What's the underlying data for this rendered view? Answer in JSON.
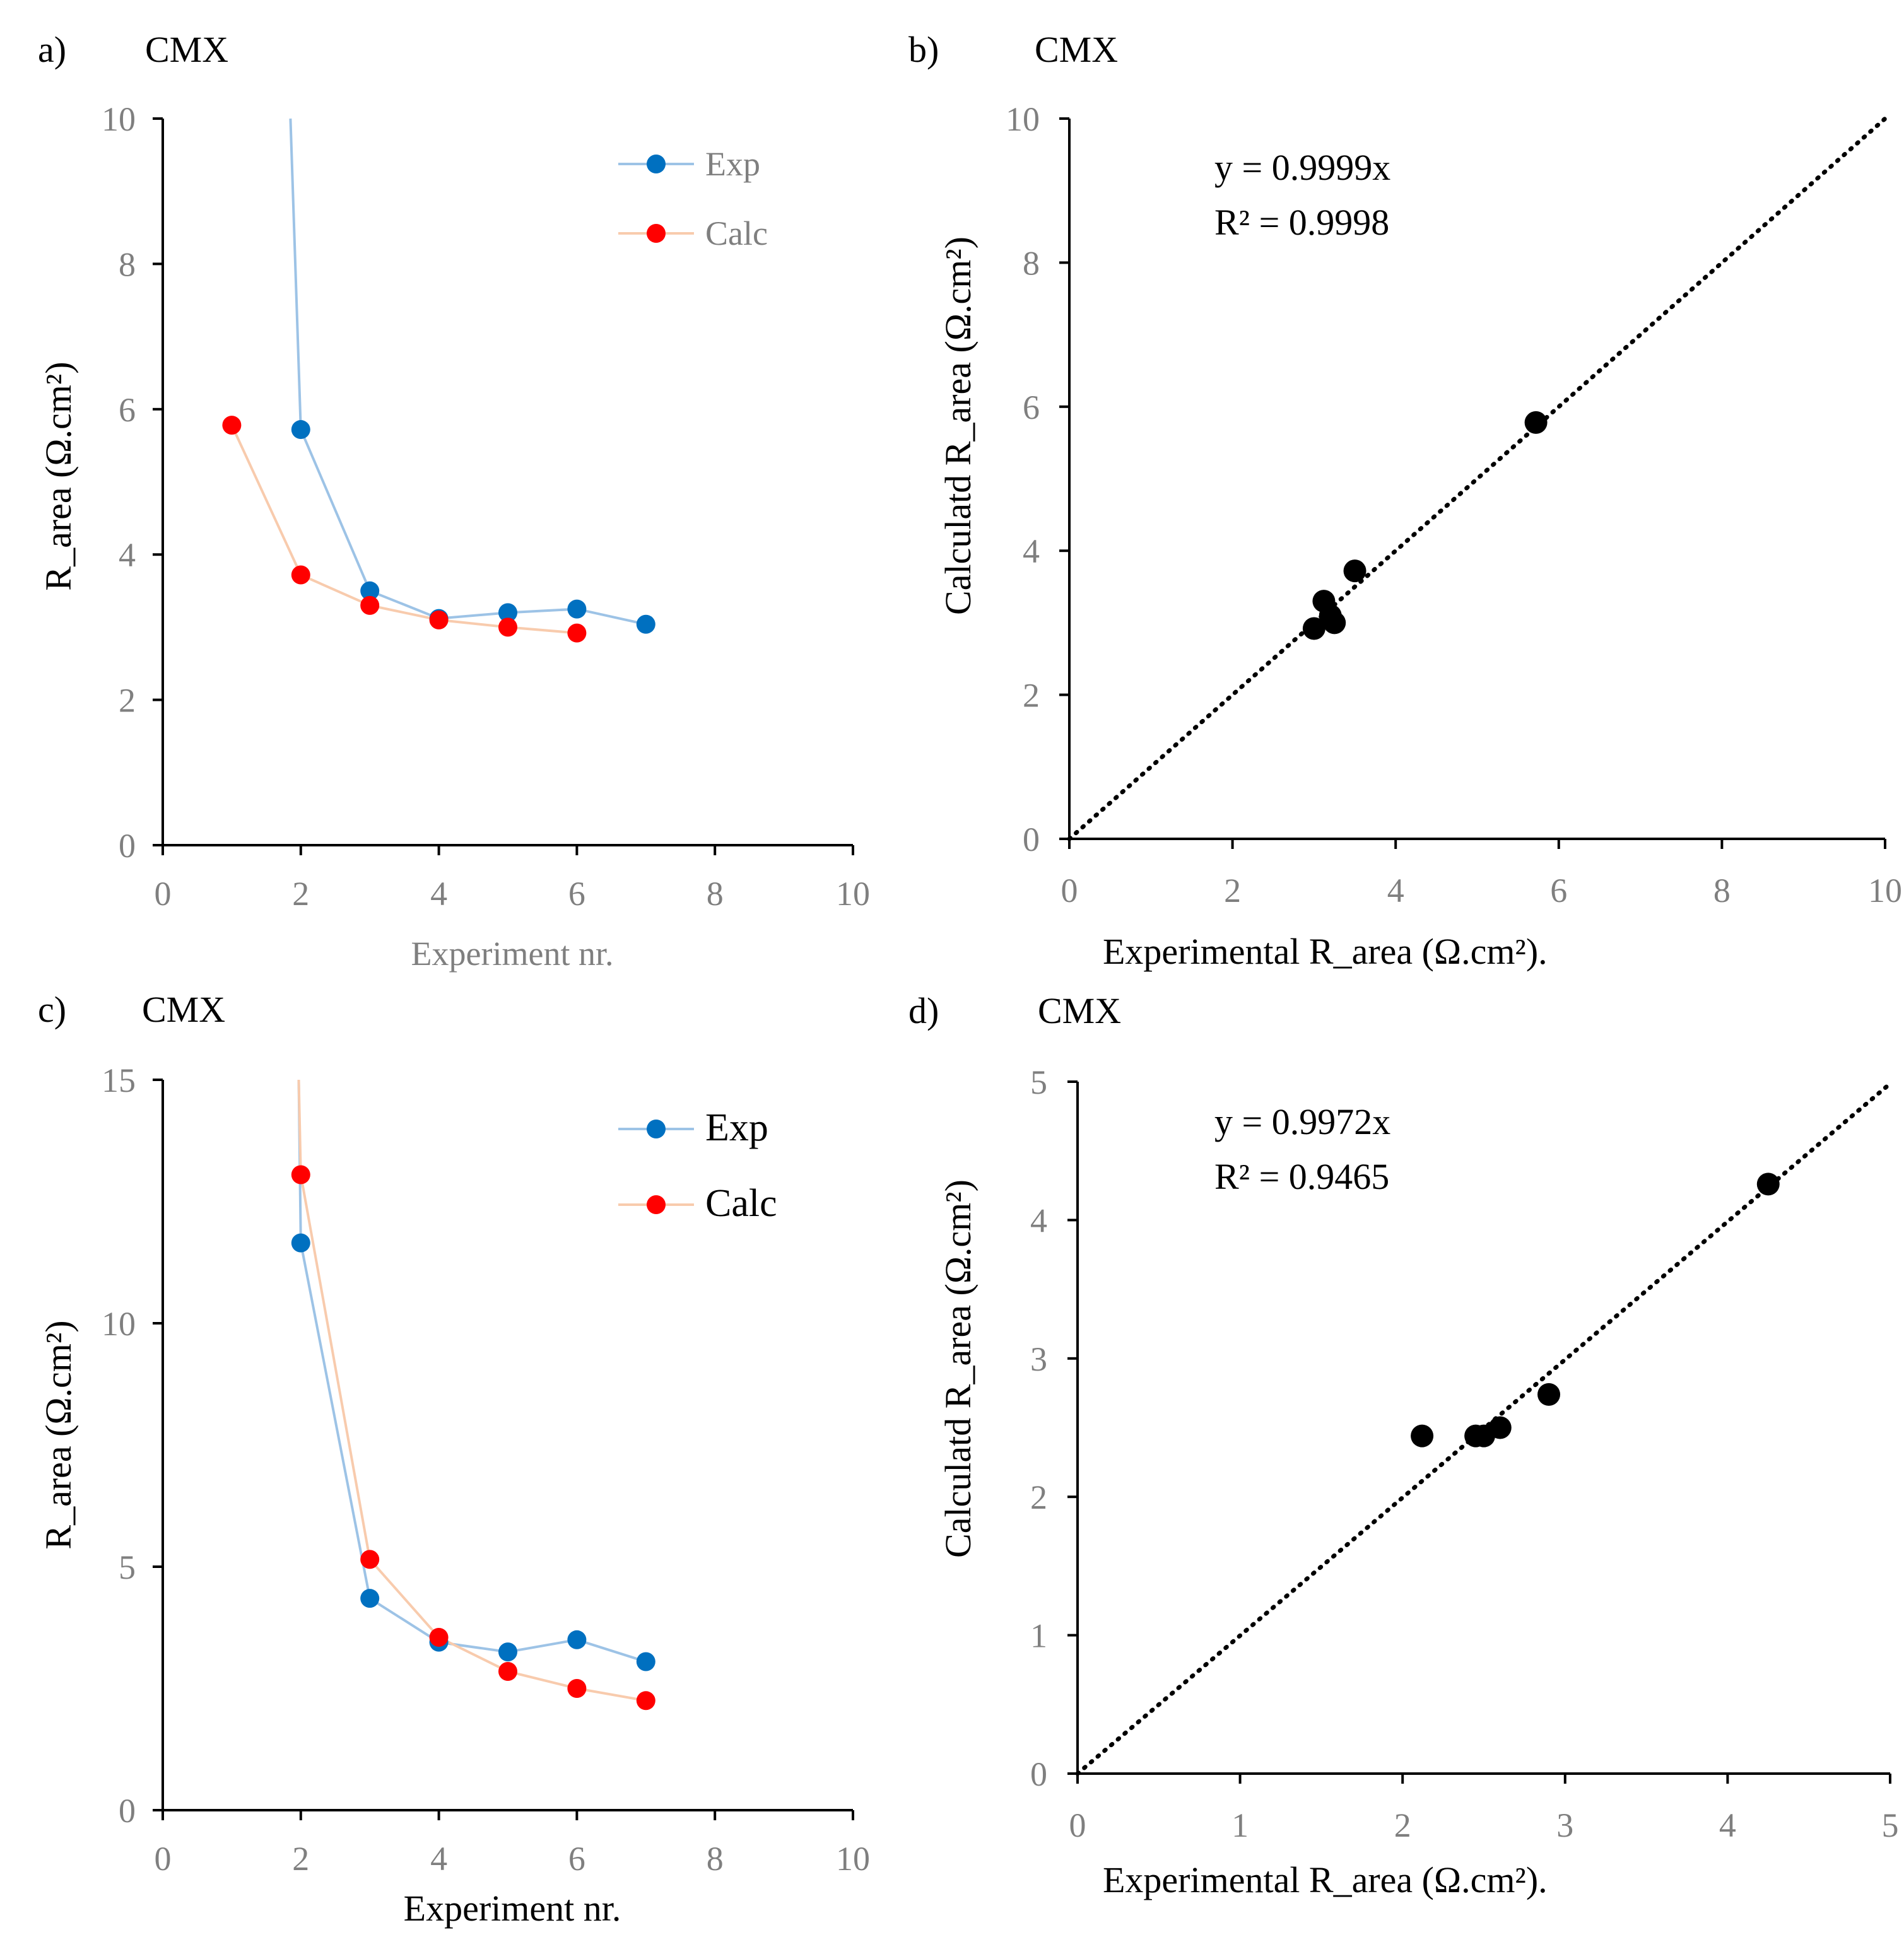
{
  "panels_header": {
    "a": {
      "letter": "a)",
      "label": "CMX"
    },
    "b": {
      "letter": "b)",
      "label": "CMX"
    },
    "c": {
      "letter": "c)",
      "label": "CMX"
    },
    "d": {
      "letter": "d)",
      "label": "CMX"
    }
  },
  "chart_data": [
    {
      "id": "a",
      "type": "line",
      "title": "CMX",
      "panel_letter": "a)",
      "xlabel": "Experiment nr.",
      "ylabel": "R_area (Ω.cm²)",
      "xlim": [
        0,
        10
      ],
      "ylim": [
        0,
        10
      ],
      "xticks": [
        0,
        2,
        4,
        6,
        8,
        10
      ],
      "yticks": [
        0,
        2,
        4,
        6,
        8,
        10
      ],
      "legend": "top-right",
      "series": [
        {
          "name": "Exp",
          "color": "#0070C0",
          "line_color": "#9DC3E6",
          "lead_in": {
            "x": 1.85,
            "y": 10
          },
          "x": [
            2,
            3,
            4,
            5,
            6,
            7
          ],
          "y": [
            5.72,
            3.5,
            3.12,
            3.2,
            3.25,
            3.04
          ]
        },
        {
          "name": "Calc",
          "color": "#FF0000",
          "line_color": "#F8CBAD",
          "x": [
            1,
            2,
            3,
            4,
            5,
            6
          ],
          "y": [
            5.78,
            3.72,
            3.3,
            3.1,
            3.0,
            2.92
          ]
        }
      ]
    },
    {
      "id": "b",
      "type": "scatter",
      "title": "CMX",
      "panel_letter": "b)",
      "xlabel": "Experimental R_area (Ω.cm²).",
      "ylabel": "Calculatd R_area (Ω.cm²)",
      "xlim": [
        0,
        10
      ],
      "ylim": [
        0,
        10
      ],
      "xticks": [
        0,
        2,
        4,
        6,
        8,
        10
      ],
      "yticks": [
        0,
        2,
        4,
        6,
        8,
        10
      ],
      "trendline": {
        "slope": 0.9999,
        "equation": "y = 0.9999x",
        "r2": "R² = 0.9998"
      },
      "points": {
        "x": [
          3.0,
          3.12,
          3.2,
          3.25,
          3.5,
          5.72
        ],
        "y": [
          2.92,
          3.3,
          3.1,
          3.0,
          3.72,
          5.78
        ]
      }
    },
    {
      "id": "c",
      "type": "line",
      "title": "CMX",
      "panel_letter": "c)",
      "xlabel": "Experiment nr.",
      "ylabel": "R_area (Ω.cm²)",
      "xlim": [
        0,
        10
      ],
      "ylim": [
        0,
        15
      ],
      "xticks": [
        0,
        2,
        4,
        6,
        8,
        10
      ],
      "yticks": [
        0,
        5,
        10,
        15
      ],
      "legend": "top-right",
      "series": [
        {
          "name": "Exp",
          "color": "#0070C0",
          "line_color": "#9DC3E6",
          "lead_in": {
            "x": 1.97,
            "y": 15
          },
          "x": [
            2,
            3,
            4,
            5,
            6,
            7
          ],
          "y": [
            11.65,
            4.35,
            3.45,
            3.25,
            3.5,
            3.05
          ]
        },
        {
          "name": "Calc",
          "color": "#FF0000",
          "line_color": "#F8CBAD",
          "lead_in": {
            "x": 1.97,
            "y": 15
          },
          "x": [
            2,
            3,
            4,
            5,
            6,
            7
          ],
          "y": [
            13.05,
            5.15,
            3.55,
            2.85,
            2.5,
            2.25
          ]
        }
      ]
    },
    {
      "id": "d",
      "type": "scatter",
      "title": "CMX",
      "panel_letter": "d)",
      "xlabel": "Experimental R_area (Ω.cm²).",
      "ylabel": "Calculatd R_area (Ω.cm²)",
      "xlim": [
        0,
        5
      ],
      "ylim": [
        0,
        5
      ],
      "xticks": [
        0,
        1,
        2,
        3,
        4,
        5
      ],
      "yticks": [
        0,
        1,
        2,
        3,
        4,
        5
      ],
      "trendline": {
        "slope": 0.9972,
        "equation": "y = 0.9972x",
        "r2": "R² = 0.9465"
      },
      "points": {
        "x": [
          2.12,
          2.45,
          2.5,
          2.6,
          2.9,
          4.25
        ],
        "y": [
          2.44,
          2.44,
          2.44,
          2.5,
          2.74,
          4.26
        ]
      }
    }
  ]
}
